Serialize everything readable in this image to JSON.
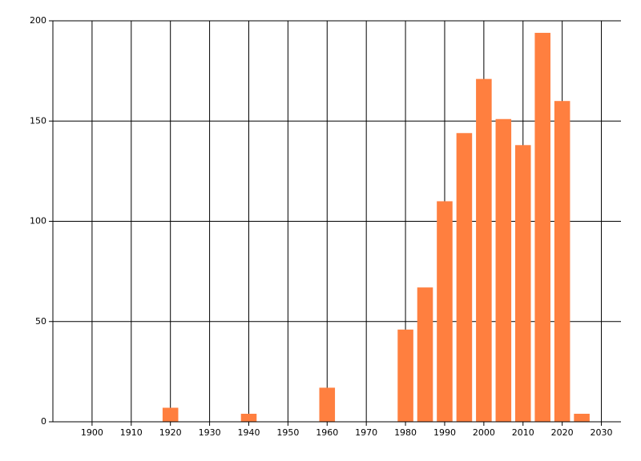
{
  "chart_data": {
    "type": "bar",
    "x": [
      1920,
      1940,
      1960,
      1980,
      1985,
      1990,
      1995,
      2000,
      2005,
      2010,
      2015,
      2020,
      2025
    ],
    "values": [
      7,
      4,
      17,
      46,
      67,
      110,
      144,
      171,
      151,
      138,
      194,
      160,
      4
    ],
    "color": "#ff7f3f",
    "xlim": [
      1890,
      2035
    ],
    "xticks": [
      1900,
      1910,
      1920,
      1930,
      1940,
      1950,
      1960,
      1970,
      1980,
      1990,
      2000,
      2010,
      2020,
      2030
    ],
    "ylim": [
      0,
      200
    ],
    "yticks": [
      0,
      50,
      100,
      150,
      200
    ],
    "grid": true
  }
}
